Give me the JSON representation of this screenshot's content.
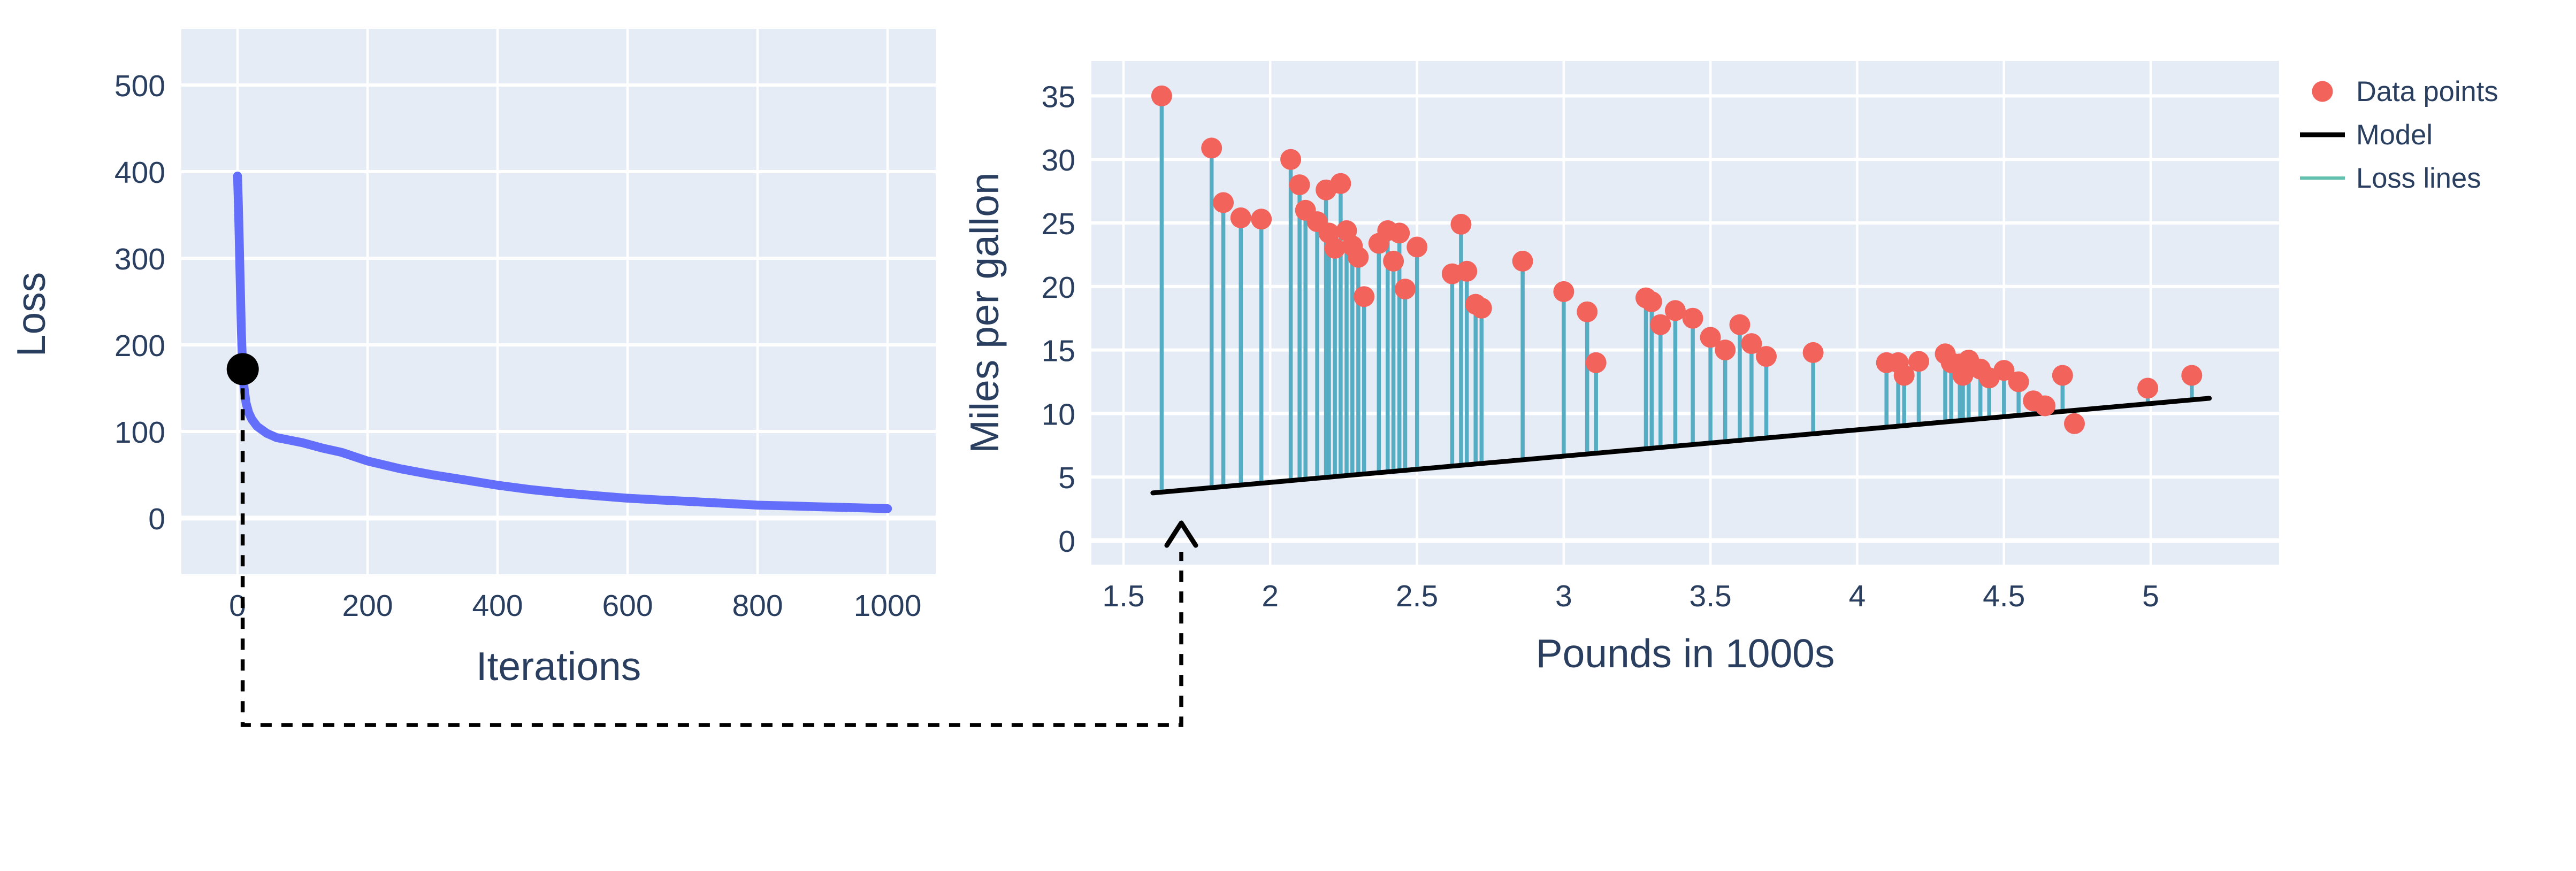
{
  "style": {
    "plot_bg": "#E5ECF6",
    "grid": "#ffffff",
    "text": "#2a3f5f",
    "connector": "#000000"
  },
  "chart_data": [
    {
      "id": "loss-curve",
      "type": "line",
      "title": "",
      "xlabel": "Iterations",
      "ylabel": "Loss",
      "xlim": [
        -85,
        1075
      ],
      "ylim": [
        -60,
        565
      ],
      "x_tick_values": [
        0,
        200,
        400,
        600,
        800,
        1000
      ],
      "x_tick_labels": [
        "0",
        "200",
        "400",
        "600",
        "800",
        "1000"
      ],
      "y_tick_values": [
        0,
        100,
        200,
        300,
        400,
        500
      ],
      "y_tick_labels": [
        "0",
        "100",
        "200",
        "300",
        "400",
        "500"
      ],
      "grid": true,
      "line_color": "#636EFA",
      "series": [
        {
          "name": "loss",
          "x": [
            0,
            1,
            2,
            3,
            4,
            5,
            6,
            8,
            10,
            13,
            17,
            22,
            30,
            45,
            60,
            80,
            100,
            130,
            160,
            200,
            250,
            300,
            350,
            400,
            450,
            500,
            550,
            600,
            650,
            700,
            750,
            800,
            850,
            900,
            950,
            1000
          ],
          "y": [
            395,
            370,
            342,
            310,
            278,
            246,
            215,
            172,
            150,
            133,
            122,
            114,
            106,
            98,
            93,
            90,
            87,
            81,
            76,
            66,
            57,
            50,
            44,
            38,
            33,
            29,
            26,
            23,
            21,
            19,
            17,
            15,
            14,
            13,
            12,
            11
          ]
        }
      ],
      "marker": {
        "x": 8,
        "y": 172,
        "color": "#000000",
        "meaning": "current iteration shown in right chart"
      }
    },
    {
      "id": "model-fit",
      "type": "scatter",
      "title": "",
      "xlabel": "Pounds in 1000s",
      "ylabel": "Miles per gallon",
      "xlim": [
        1.39,
        5.44
      ],
      "ylim": [
        -2.3,
        37.8
      ],
      "x_tick_values": [
        1.5,
        2,
        2.5,
        3,
        3.5,
        4,
        4.5,
        5
      ],
      "x_tick_labels": [
        "1.5",
        "2",
        "2.5",
        "3",
        "3.5",
        "4",
        "4.5",
        "5"
      ],
      "y_tick_values": [
        0,
        5,
        10,
        15,
        20,
        25,
        30,
        35
      ],
      "y_tick_labels": [
        "0",
        "5",
        "10",
        "15",
        "20",
        "25",
        "30",
        "35"
      ],
      "grid": true,
      "colors": {
        "points": "#f2635c",
        "model": "#000000",
        "loss_lines": "#55adc3"
      },
      "points": [
        [
          1.63,
          35.0
        ],
        [
          1.8,
          30.9
        ],
        [
          1.84,
          26.6
        ],
        [
          1.9,
          25.4
        ],
        [
          1.97,
          25.3
        ],
        [
          2.07,
          30.0
        ],
        [
          2.1,
          28.0
        ],
        [
          2.12,
          26.0
        ],
        [
          2.16,
          25.1
        ],
        [
          2.19,
          27.6
        ],
        [
          2.2,
          24.2
        ],
        [
          2.22,
          23.0
        ],
        [
          2.24,
          28.1
        ],
        [
          2.26,
          24.4
        ],
        [
          2.28,
          23.2
        ],
        [
          2.3,
          22.3
        ],
        [
          2.32,
          19.2
        ],
        [
          2.37,
          23.4
        ],
        [
          2.4,
          24.4
        ],
        [
          2.42,
          22.0
        ],
        [
          2.44,
          24.2
        ],
        [
          2.46,
          19.8
        ],
        [
          2.5,
          23.1
        ],
        [
          2.62,
          21.0
        ],
        [
          2.65,
          24.9
        ],
        [
          2.67,
          21.2
        ],
        [
          2.7,
          18.6
        ],
        [
          2.72,
          18.3
        ],
        [
          2.86,
          22.0
        ],
        [
          3.0,
          19.6
        ],
        [
          3.08,
          18.0
        ],
        [
          3.11,
          14.0
        ],
        [
          3.28,
          19.1
        ],
        [
          3.3,
          18.8
        ],
        [
          3.33,
          17.0
        ],
        [
          3.38,
          18.1
        ],
        [
          3.44,
          17.5
        ],
        [
          3.5,
          16.0
        ],
        [
          3.55,
          15.0
        ],
        [
          3.6,
          17.0
        ],
        [
          3.64,
          15.5
        ],
        [
          3.69,
          14.5
        ],
        [
          3.85,
          14.8
        ],
        [
          4.1,
          14.0
        ],
        [
          4.14,
          14.0
        ],
        [
          4.16,
          13.0
        ],
        [
          4.21,
          14.1
        ],
        [
          4.3,
          14.7
        ],
        [
          4.32,
          14.0
        ],
        [
          4.35,
          13.9
        ],
        [
          4.36,
          13.0
        ],
        [
          4.38,
          14.2
        ],
        [
          4.42,
          13.5
        ],
        [
          4.45,
          12.8
        ],
        [
          4.5,
          13.4
        ],
        [
          4.55,
          12.5
        ],
        [
          4.6,
          11.0
        ],
        [
          4.64,
          10.6
        ],
        [
          4.7,
          13.0
        ],
        [
          4.74,
          9.2
        ],
        [
          4.99,
          12.0
        ],
        [
          5.14,
          13.0
        ]
      ],
      "model": {
        "x0": 1.6,
        "y0": 3.75,
        "x1": 5.2,
        "y1": 11.2
      },
      "legend": [
        {
          "label": "Data points",
          "type": "marker",
          "color": "#f2635c"
        },
        {
          "label": "Model",
          "type": "line",
          "color": "#000000"
        },
        {
          "label": "Loss lines",
          "type": "line",
          "color": "#62c1ae"
        }
      ],
      "legend_position": "top-right-outside"
    }
  ]
}
